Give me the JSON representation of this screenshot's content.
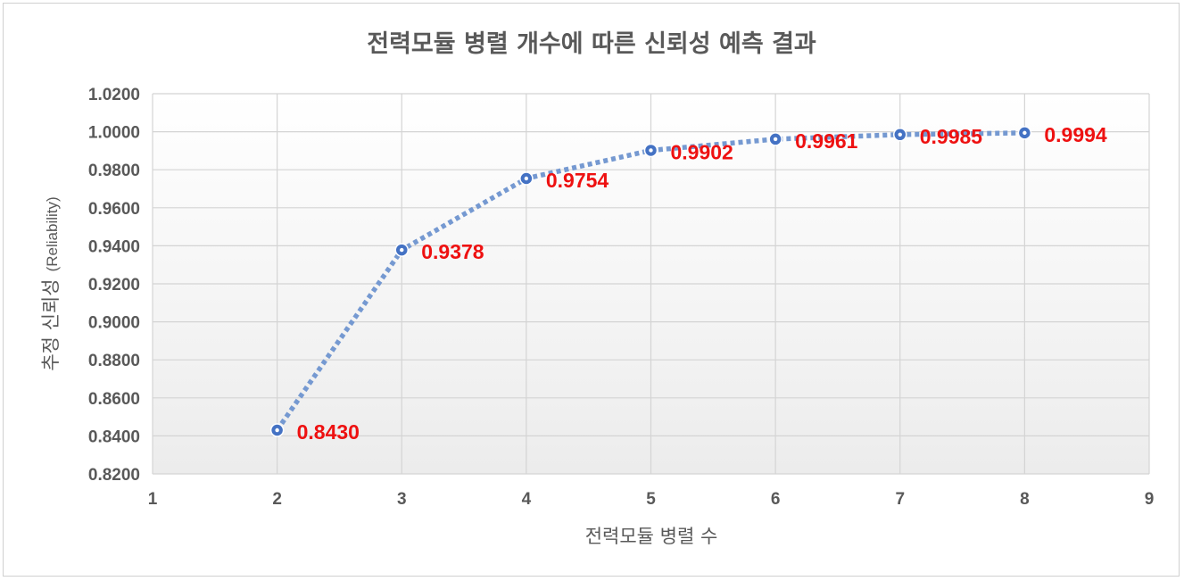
{
  "chart_data": {
    "type": "line",
    "title": "전력모듈 병렬 개수에 따른 신뢰성 예측 결과",
    "xlabel": "전력모듈 병렬 수",
    "ylabel_ko": "추정 신뢰성",
    "ylabel_en": "(Reliability)",
    "xlim": [
      1,
      9
    ],
    "ylim": [
      0.82,
      1.02
    ],
    "x_ticks": [
      "1",
      "2",
      "3",
      "4",
      "5",
      "6",
      "7",
      "8",
      "9"
    ],
    "y_ticks": [
      "0.8200",
      "0.8400",
      "0.8600",
      "0.8800",
      "0.9000",
      "0.9200",
      "0.9400",
      "0.9600",
      "0.9800",
      "1.0000",
      "1.0200"
    ],
    "grid": true,
    "line_style": "dotted",
    "series": [
      {
        "x": [
          2,
          3,
          4,
          5,
          6,
          7,
          8
        ],
        "y": [
          0.843,
          0.9378,
          0.9754,
          0.9902,
          0.9961,
          0.9985,
          0.9994
        ],
        "labels": [
          "0.8430",
          "0.9378",
          "0.9754",
          "0.9902",
          "0.9961",
          "0.9985",
          "0.9994"
        ],
        "color": "#4472c4",
        "line_color": "#7599d1",
        "label_color": "#ee1111"
      }
    ]
  }
}
